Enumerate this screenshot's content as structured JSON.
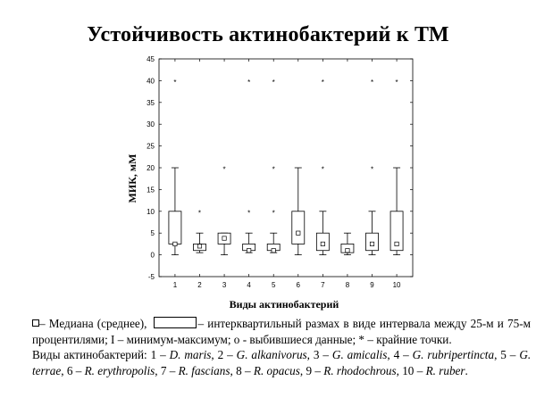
{
  "title": "Устойчивость актинобактерий к ТМ",
  "chart_data": {
    "type": "boxplot",
    "xlabel": "Виды актинобактерий",
    "ylabel": "МИК, мМ",
    "ylim": [
      -5,
      45
    ],
    "yticks": [
      -5,
      0,
      5,
      10,
      15,
      20,
      25,
      30,
      35,
      40,
      45
    ],
    "categories": [
      "1",
      "2",
      "3",
      "4",
      "5",
      "6",
      "7",
      "8",
      "9",
      "10"
    ],
    "grid": false,
    "boxes": [
      {
        "category": "1",
        "min": 0,
        "q1": 2.5,
        "median": 2.5,
        "q3": 10,
        "max": 20,
        "extremes": [
          40
        ]
      },
      {
        "category": "2",
        "min": 0.5,
        "q1": 1,
        "median": 2,
        "q3": 2.5,
        "max": 5,
        "extremes": [
          10
        ]
      },
      {
        "category": "3",
        "min": 0,
        "q1": 2.5,
        "median": 3.8,
        "q3": 5,
        "max": 5,
        "extremes": [
          20
        ]
      },
      {
        "category": "4",
        "min": 0.5,
        "q1": 1,
        "median": 1,
        "q3": 2.5,
        "max": 5,
        "extremes": [
          10,
          40
        ]
      },
      {
        "category": "5",
        "min": 0.5,
        "q1": 1,
        "median": 1,
        "q3": 2.5,
        "max": 5,
        "extremes": [
          10,
          20,
          40
        ]
      },
      {
        "category": "6",
        "min": 0,
        "q1": 2.5,
        "median": 5,
        "q3": 10,
        "max": 20,
        "extremes": []
      },
      {
        "category": "7",
        "min": 0,
        "q1": 1,
        "median": 2.5,
        "q3": 5,
        "max": 10,
        "extremes": [
          20,
          40
        ]
      },
      {
        "category": "8",
        "min": 0,
        "q1": 0.5,
        "median": 1,
        "q3": 2.5,
        "max": 5,
        "extremes": []
      },
      {
        "category": "9",
        "min": 0,
        "q1": 1,
        "median": 2.5,
        "q3": 5,
        "max": 10,
        "extremes": [
          20,
          40
        ]
      },
      {
        "category": "10",
        "min": 0,
        "q1": 1,
        "median": 2.5,
        "q3": 10,
        "max": 20,
        "extremes": [
          40
        ]
      }
    ]
  },
  "legend": {
    "median_text": "– Медиана (среднее),",
    "box_text": "– интерквартильный размах в виде интервала между 25-м и 75-м процентилями; I – минимум-максимум; о - выбившиеся данные; * – крайние точки."
  },
  "species": {
    "intro": "Виды актинобактерий:",
    "items": [
      {
        "num": "1 –",
        "name": "D. maris"
      },
      {
        "num": "2 –",
        "name": "G. alkanivorus"
      },
      {
        "num": "3 –",
        "name": "G. amicalis"
      },
      {
        "num": "4 –",
        "name": "G. rubripertincta"
      },
      {
        "num": "5 –",
        "name": "G. terrae"
      },
      {
        "num": "6 –",
        "name": "R. erythropolis"
      },
      {
        "num": "7 –",
        "name": "R. fascians"
      },
      {
        "num": "8 –",
        "name": "R. opacus"
      },
      {
        "num": "9 –",
        "name": "R. rhodochrous"
      },
      {
        "num": "10 –",
        "name": "R. ruber"
      }
    ]
  }
}
